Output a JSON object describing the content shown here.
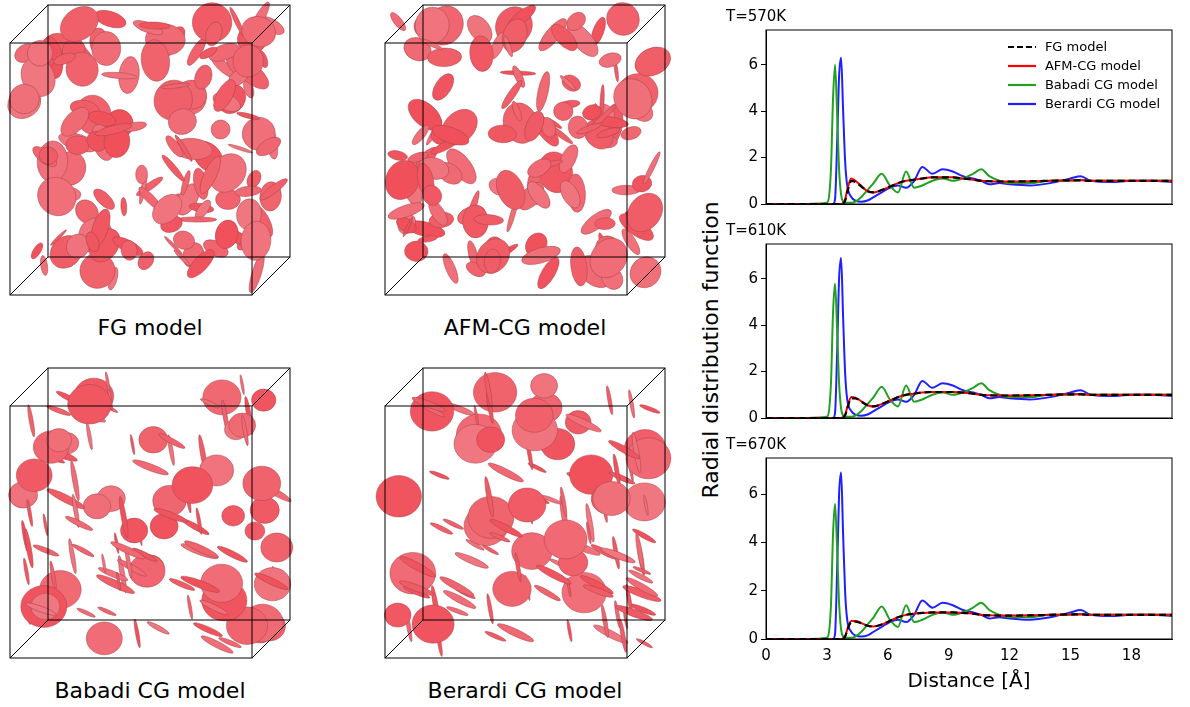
{
  "figure": {
    "renders": [
      {
        "caption": "FG model"
      },
      {
        "caption": "AFM-CG model"
      },
      {
        "caption": "Babadi CG model"
      },
      {
        "caption": "Berardi CG model"
      }
    ],
    "ylabel": "Radial distribution function"
  },
  "chart_data": [
    {
      "type": "line",
      "title": "T=570K",
      "x": [
        0,
        1,
        2,
        3,
        3.2,
        3.3,
        3.4,
        3.5,
        3.6,
        3.7,
        3.8,
        3.9,
        4.0,
        4.2,
        4.4,
        4.7,
        5.0,
        5.3,
        5.7,
        6.1,
        6.5,
        6.9,
        7.3,
        7.7,
        8.2,
        8.7,
        9.2,
        9.7,
        10.2,
        10.6,
        11.0,
        11.5,
        12.0,
        13.0,
        14.0,
        15.0,
        15.5,
        16.0,
        17.0,
        18.0,
        19.0,
        20.0
      ],
      "series": [
        {
          "name": "FG model",
          "color": "#000000",
          "line_style": "dashed",
          "values": [
            0,
            0,
            0,
            0,
            0,
            0,
            0,
            0,
            0,
            0,
            0.02,
            0.15,
            0.5,
            1.0,
            0.95,
            0.75,
            0.55,
            0.5,
            0.6,
            0.75,
            0.9,
            1.0,
            1.05,
            1.1,
            1.15,
            1.15,
            1.15,
            1.1,
            1.05,
            1.0,
            0.98,
            0.97,
            0.97,
            0.98,
            1.0,
            1.02,
            1.02,
            1.0,
            1.0,
            1.0,
            1.0,
            1.0
          ]
        },
        {
          "name": "AFM-CG model",
          "color": "#ff0000",
          "line_style": "solid",
          "values": [
            0,
            0,
            0,
            0,
            0,
            0,
            0,
            0,
            0,
            0,
            0.03,
            0.2,
            0.6,
            1.1,
            1.0,
            0.78,
            0.55,
            0.5,
            0.6,
            0.75,
            0.9,
            1.0,
            1.05,
            1.1,
            1.15,
            1.15,
            1.15,
            1.1,
            1.05,
            1.0,
            0.98,
            0.97,
            0.97,
            0.98,
            1.0,
            1.02,
            1.02,
            1.0,
            1.0,
            1.0,
            1.0,
            1.0
          ]
        },
        {
          "name": "Babadi CG model",
          "color": "#22a022",
          "line_style": "solid",
          "values": [
            0,
            0,
            0,
            0.05,
            1.5,
            4.5,
            6.0,
            4.0,
            1.5,
            0.4,
            0.1,
            0.05,
            0.05,
            0.05,
            0.1,
            0.3,
            0.6,
            0.9,
            1.3,
            0.8,
            0.5,
            1.4,
            0.7,
            0.8,
            1.0,
            1.1,
            1.0,
            1.1,
            1.3,
            1.5,
            1.2,
            1.0,
            0.9,
            0.9,
            1.0,
            1.0,
            1.05,
            1.0,
            1.0,
            1.0,
            1.0,
            1.0
          ]
        },
        {
          "name": "Berardi CG model",
          "color": "#1f1fff",
          "line_style": "solid",
          "values": [
            0,
            0,
            0,
            0,
            0,
            0,
            0.2,
            2.5,
            5.5,
            6.3,
            4.0,
            1.8,
            0.8,
            0.3,
            0.15,
            0.1,
            0.15,
            0.3,
            0.5,
            0.7,
            0.8,
            0.7,
            1.0,
            1.6,
            1.3,
            1.5,
            1.4,
            1.2,
            1.1,
            1.0,
            0.85,
            0.9,
            0.85,
            0.8,
            0.9,
            1.1,
            1.2,
            1.0,
            0.95,
            1.0,
            1.0,
            0.95
          ]
        }
      ],
      "xlim": [
        0,
        20
      ],
      "xticks": [
        0,
        3,
        6,
        9,
        12,
        15,
        18
      ],
      "ylim": [
        0,
        7.5
      ],
      "yticks": [
        0,
        2,
        4,
        6
      ],
      "legend": "upper right",
      "tick_labels": "y"
    },
    {
      "type": "line",
      "title": "T=610K",
      "x": [
        0,
        1,
        2,
        3,
        3.2,
        3.3,
        3.4,
        3.5,
        3.6,
        3.7,
        3.8,
        3.9,
        4.0,
        4.2,
        4.4,
        4.7,
        5.0,
        5.3,
        5.7,
        6.1,
        6.5,
        6.9,
        7.3,
        7.7,
        8.2,
        8.7,
        9.2,
        9.7,
        10.2,
        10.6,
        11.0,
        11.5,
        12.0,
        13.0,
        14.0,
        15.0,
        15.5,
        16.0,
        17.0,
        18.0,
        19.0,
        20.0
      ],
      "series": [
        {
          "name": "FG model",
          "color": "#000000",
          "line_style": "dashed",
          "values": [
            0,
            0,
            0,
            0,
            0,
            0,
            0,
            0,
            0,
            0,
            0.02,
            0.12,
            0.4,
            0.85,
            0.85,
            0.7,
            0.55,
            0.5,
            0.6,
            0.75,
            0.9,
            1.0,
            1.05,
            1.1,
            1.12,
            1.12,
            1.12,
            1.1,
            1.05,
            1.0,
            0.98,
            0.97,
            0.97,
            0.98,
            1.0,
            1.02,
            1.02,
            1.0,
            1.0,
            1.0,
            1.0,
            1.0
          ]
        },
        {
          "name": "AFM-CG model",
          "color": "#ff0000",
          "line_style": "solid",
          "values": [
            0,
            0,
            0,
            0,
            0,
            0,
            0,
            0,
            0,
            0,
            0.03,
            0.15,
            0.45,
            0.9,
            0.88,
            0.72,
            0.55,
            0.5,
            0.6,
            0.75,
            0.9,
            1.0,
            1.05,
            1.1,
            1.12,
            1.12,
            1.12,
            1.1,
            1.05,
            1.0,
            0.98,
            0.97,
            0.97,
            0.98,
            1.0,
            1.02,
            1.02,
            1.0,
            1.0,
            1.0,
            1.0,
            1.0
          ]
        },
        {
          "name": "Babadi CG model",
          "color": "#22a022",
          "line_style": "solid",
          "values": [
            0,
            0,
            0,
            0.05,
            1.5,
            4.5,
            5.8,
            3.9,
            1.5,
            0.4,
            0.1,
            0.05,
            0.05,
            0.05,
            0.1,
            0.3,
            0.6,
            0.9,
            1.35,
            0.8,
            0.5,
            1.4,
            0.7,
            0.8,
            1.0,
            1.1,
            1.0,
            1.1,
            1.3,
            1.5,
            1.2,
            1.0,
            0.9,
            0.9,
            1.0,
            1.0,
            1.05,
            1.0,
            1.0,
            1.0,
            1.0,
            1.0
          ]
        },
        {
          "name": "Berardi CG model",
          "color": "#1f1fff",
          "line_style": "solid",
          "values": [
            0,
            0,
            0,
            0,
            0,
            0,
            0.2,
            2.7,
            6.0,
            6.9,
            4.3,
            1.9,
            0.8,
            0.3,
            0.15,
            0.1,
            0.15,
            0.3,
            0.5,
            0.7,
            0.8,
            0.7,
            1.0,
            1.6,
            1.3,
            1.5,
            1.4,
            1.2,
            1.1,
            1.0,
            0.85,
            0.9,
            0.85,
            0.8,
            0.9,
            1.1,
            1.2,
            1.0,
            0.95,
            1.0,
            1.0,
            0.95
          ]
        }
      ],
      "xlim": [
        0,
        20
      ],
      "xticks": [
        0,
        3,
        6,
        9,
        12,
        15,
        18
      ],
      "ylim": [
        0,
        7.5
      ],
      "yticks": [
        0,
        2,
        4,
        6
      ],
      "tick_labels": "y"
    },
    {
      "type": "line",
      "title": "T=670K",
      "xlabel": "Distance [Å]",
      "x": [
        0,
        1,
        2,
        3,
        3.2,
        3.3,
        3.4,
        3.5,
        3.6,
        3.7,
        3.8,
        3.9,
        4.0,
        4.2,
        4.4,
        4.7,
        5.0,
        5.3,
        5.7,
        6.1,
        6.5,
        6.9,
        7.3,
        7.7,
        8.2,
        8.7,
        9.2,
        9.7,
        10.2,
        10.6,
        11.0,
        11.5,
        12.0,
        13.0,
        14.0,
        15.0,
        15.5,
        16.0,
        17.0,
        18.0,
        19.0,
        20.0
      ],
      "series": [
        {
          "name": "FG model",
          "color": "#000000",
          "line_style": "dashed",
          "values": [
            0,
            0,
            0,
            0,
            0,
            0,
            0,
            0,
            0,
            0,
            0.02,
            0.1,
            0.35,
            0.7,
            0.72,
            0.65,
            0.55,
            0.52,
            0.6,
            0.75,
            0.9,
            1.0,
            1.05,
            1.08,
            1.1,
            1.1,
            1.1,
            1.08,
            1.05,
            1.0,
            0.98,
            0.97,
            0.97,
            0.98,
            1.0,
            1.02,
            1.02,
            1.0,
            1.0,
            1.0,
            1.0,
            1.0
          ]
        },
        {
          "name": "AFM-CG model",
          "color": "#ff0000",
          "line_style": "solid",
          "values": [
            0,
            0,
            0,
            0,
            0,
            0,
            0,
            0,
            0,
            0,
            0.03,
            0.12,
            0.38,
            0.75,
            0.75,
            0.66,
            0.55,
            0.52,
            0.6,
            0.75,
            0.9,
            1.0,
            1.05,
            1.08,
            1.1,
            1.1,
            1.1,
            1.08,
            1.05,
            1.0,
            0.98,
            0.97,
            0.97,
            0.98,
            1.0,
            1.02,
            1.02,
            1.0,
            1.0,
            1.0,
            1.0,
            1.0
          ]
        },
        {
          "name": "Babadi CG model",
          "color": "#22a022",
          "line_style": "solid",
          "values": [
            0,
            0,
            0,
            0.05,
            1.4,
            4.3,
            5.6,
            3.8,
            1.5,
            0.4,
            0.1,
            0.05,
            0.05,
            0.05,
            0.1,
            0.3,
            0.6,
            0.9,
            1.35,
            0.8,
            0.5,
            1.4,
            0.7,
            0.8,
            1.0,
            1.1,
            1.0,
            1.1,
            1.3,
            1.5,
            1.2,
            1.0,
            0.9,
            0.9,
            1.0,
            1.0,
            1.05,
            1.0,
            1.0,
            1.0,
            1.0,
            1.0
          ]
        },
        {
          "name": "Berardi CG model",
          "color": "#1f1fff",
          "line_style": "solid",
          "values": [
            0,
            0,
            0,
            0,
            0,
            0,
            0.2,
            2.7,
            6.0,
            6.9,
            4.3,
            1.9,
            0.8,
            0.3,
            0.15,
            0.1,
            0.15,
            0.3,
            0.5,
            0.7,
            0.8,
            0.7,
            1.0,
            1.6,
            1.3,
            1.5,
            1.4,
            1.2,
            1.1,
            1.0,
            0.85,
            0.9,
            0.85,
            0.8,
            0.9,
            1.1,
            1.2,
            1.0,
            0.95,
            1.0,
            1.0,
            0.95
          ]
        }
      ],
      "xlim": [
        0,
        20
      ],
      "xticks": [
        0,
        3,
        6,
        9,
        12,
        15,
        18
      ],
      "ylim": [
        0,
        7.5
      ],
      "yticks": [
        0,
        2,
        4,
        6
      ]
    }
  ]
}
